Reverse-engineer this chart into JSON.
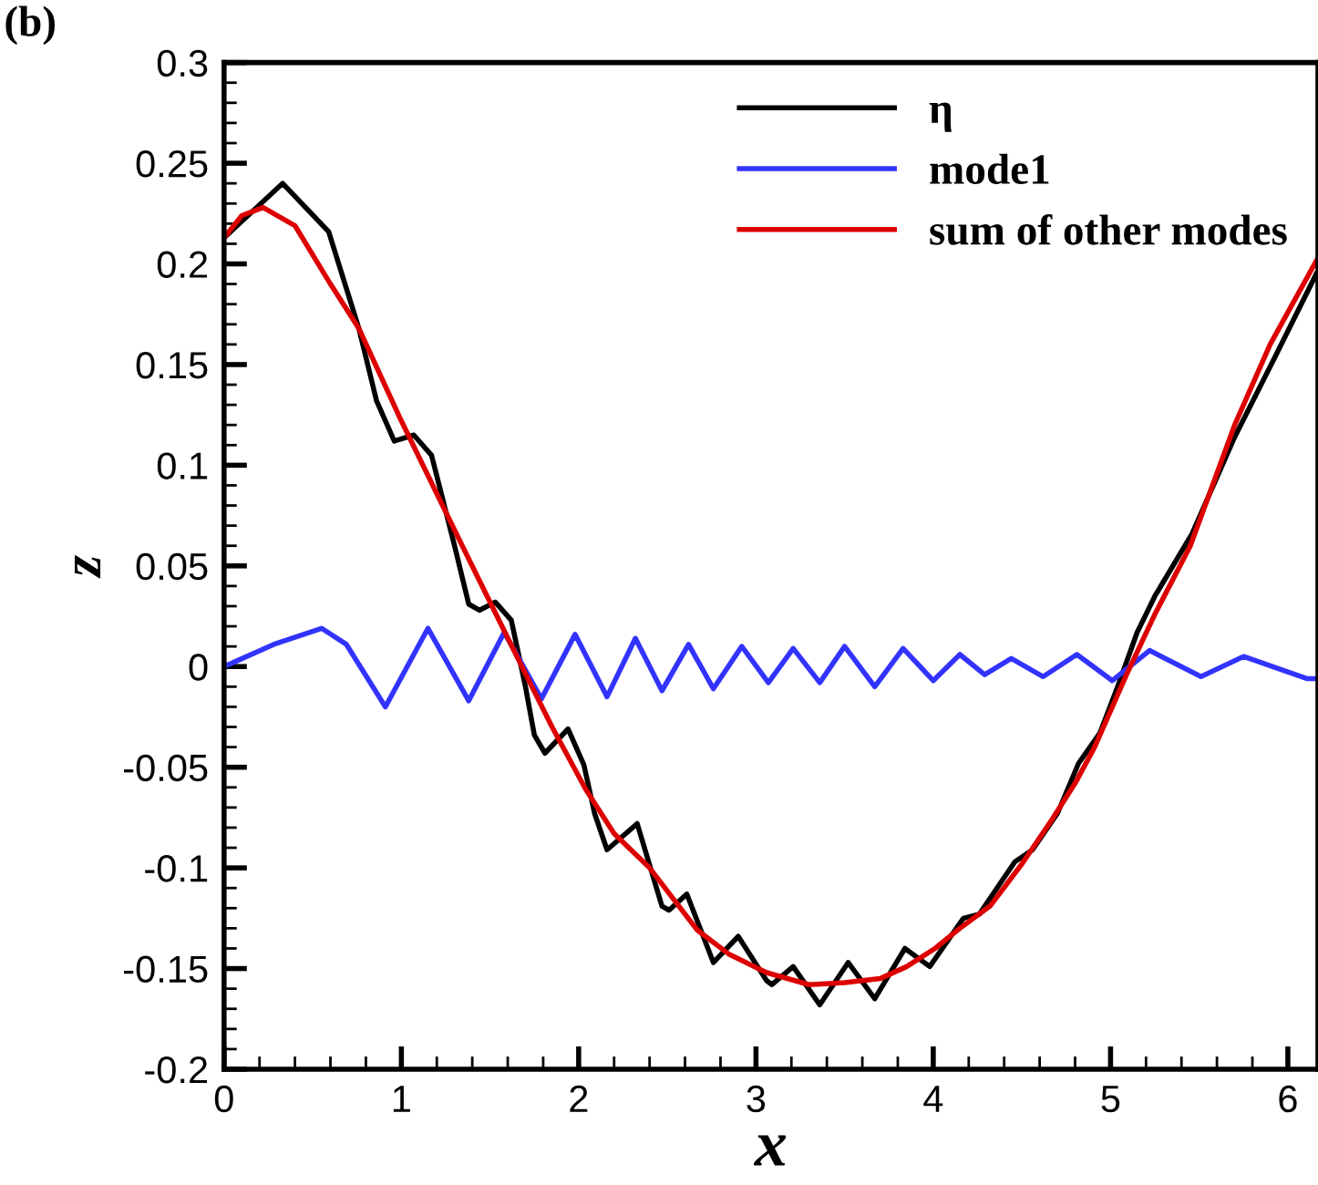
{
  "chart_data": {
    "type": "line",
    "xlabel": "x",
    "ylabel": "z",
    "annotations": [
      "(b)"
    ],
    "xlim": [
      0,
      6.17
    ],
    "ylim": [
      -0.2,
      0.3
    ],
    "xticks": [
      0,
      1,
      2,
      3,
      4,
      5,
      6
    ],
    "yticks": [
      -0.2,
      -0.15,
      -0.1,
      -0.05,
      0,
      0.05,
      0.1,
      0.15,
      0.2,
      0.25,
      0.3
    ],
    "legend": "top right",
    "grid": false,
    "series": [
      {
        "name": "η",
        "color": "#000000",
        "x": [
          0,
          0.33,
          0.59,
          0.76,
          0.86,
          0.96,
          1.07,
          1.17,
          1.3,
          1.38,
          1.44,
          1.53,
          1.62,
          1.7,
          1.75,
          1.81,
          1.94,
          2.03,
          2.09,
          2.16,
          2.33,
          2.47,
          2.51,
          2.61,
          2.76,
          2.9,
          3.06,
          3.09,
          3.21,
          3.36,
          3.52,
          3.67,
          3.84,
          3.98,
          4.17,
          4.26,
          4.46,
          4.56,
          4.7,
          4.82,
          4.94,
          5.04,
          5.15,
          5.25,
          5.46,
          5.7,
          5.94,
          6.16
        ],
        "values": [
          0.213,
          0.24,
          0.216,
          0.168,
          0.132,
          0.112,
          0.115,
          0.105,
          0.06,
          0.031,
          0.028,
          0.032,
          0.023,
          -0.01,
          -0.034,
          -0.043,
          -0.031,
          -0.049,
          -0.073,
          -0.091,
          -0.078,
          -0.119,
          -0.121,
          -0.113,
          -0.147,
          -0.134,
          -0.156,
          -0.158,
          -0.149,
          -0.168,
          -0.147,
          -0.165,
          -0.14,
          -0.149,
          -0.125,
          -0.123,
          -0.097,
          -0.091,
          -0.073,
          -0.048,
          -0.033,
          -0.01,
          0.017,
          0.035,
          0.066,
          0.114,
          0.156,
          0.195
        ]
      },
      {
        "name": "mode1",
        "color": "#3333ff",
        "x": [
          0,
          0.28,
          0.55,
          0.69,
          0.91,
          1.15,
          1.38,
          1.58,
          1.79,
          1.98,
          2.16,
          2.32,
          2.47,
          2.62,
          2.76,
          2.92,
          3.07,
          3.21,
          3.36,
          3.5,
          3.67,
          3.83,
          4.0,
          4.15,
          4.29,
          4.44,
          4.62,
          4.81,
          5.01,
          5.22,
          5.51,
          5.75,
          6.11,
          6.17
        ],
        "values": [
          0,
          0.011,
          0.019,
          0.011,
          -0.02,
          0.019,
          -0.017,
          0.017,
          -0.016,
          0.016,
          -0.015,
          0.014,
          -0.012,
          0.011,
          -0.011,
          0.01,
          -0.008,
          0.009,
          -0.008,
          0.01,
          -0.01,
          0.009,
          -0.007,
          0.006,
          -0.004,
          0.004,
          -0.005,
          0.006,
          -0.007,
          0.008,
          -0.005,
          0.005,
          -0.006,
          -0.006
        ]
      },
      {
        "name": "sum of other modes",
        "color": "#dd0000",
        "x": [
          0,
          0.1,
          0.22,
          0.4,
          0.6,
          0.76,
          1.0,
          1.31,
          1.5,
          1.68,
          1.85,
          2.04,
          2.2,
          2.4,
          2.67,
          2.85,
          3.06,
          3.3,
          3.5,
          3.7,
          3.85,
          4.01,
          4.15,
          4.32,
          4.5,
          4.67,
          4.8,
          4.91,
          5.09,
          5.25,
          5.45,
          5.7,
          5.9,
          6.17
        ],
        "values": [
          0.213,
          0.224,
          0.228,
          0.219,
          0.19,
          0.168,
          0.122,
          0.066,
          0.032,
          0.0,
          -0.03,
          -0.061,
          -0.083,
          -0.1,
          -0.131,
          -0.143,
          -0.152,
          -0.158,
          -0.157,
          -0.155,
          -0.149,
          -0.14,
          -0.13,
          -0.119,
          -0.098,
          -0.076,
          -0.058,
          -0.04,
          -0.004,
          0.026,
          0.06,
          0.12,
          0.16,
          0.203
        ]
      }
    ]
  }
}
